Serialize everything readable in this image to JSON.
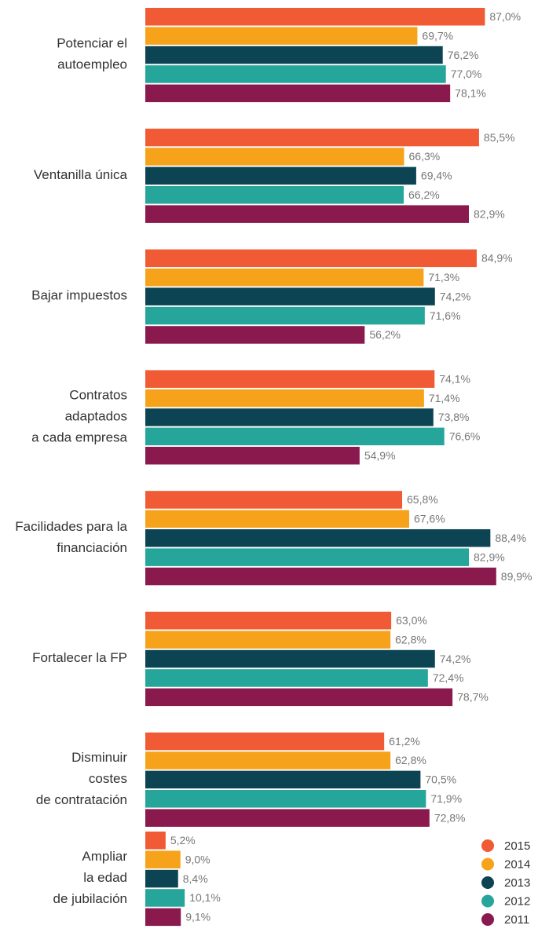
{
  "chart_data": {
    "type": "bar",
    "orientation": "horizontal",
    "categories": [
      "Potenciar el\nautoempleo",
      "Ventanilla única",
      "Bajar impuestos",
      "Contratos\nadaptados\na cada empresa",
      "Facilidades para la\nfinanciación",
      "Fortalecer la FP",
      "Disminuir\ncostes\nde contratación",
      "Ampliar\nla edad\nde jubilación"
    ],
    "xlim": [
      0,
      100
    ],
    "legend": "bottom-right",
    "series": [
      {
        "name": "2015",
        "color": "#f05a35",
        "values": [
          87.0,
          85.5,
          84.9,
          74.1,
          65.8,
          63.0,
          61.2,
          5.2
        ],
        "value_labels": [
          "87,0%",
          "85,5%",
          "84,9%",
          "74,1%",
          "65,8%",
          "63,0%",
          "61,2%",
          "5,2%"
        ]
      },
      {
        "name": "2014",
        "color": "#f7a21b",
        "values": [
          69.7,
          66.3,
          71.3,
          71.4,
          67.6,
          62.8,
          62.8,
          9.0
        ],
        "value_labels": [
          "69,7%",
          "66,3%",
          "71,3%",
          "71,4%",
          "67,6%",
          "62,8%",
          "62,8%",
          "9,0%"
        ]
      },
      {
        "name": "2013",
        "color": "#0d4454",
        "values": [
          76.2,
          69.4,
          74.2,
          73.8,
          88.4,
          74.2,
          70.5,
          8.4
        ],
        "value_labels": [
          "76,2%",
          "69,4%",
          "74,2%",
          "73,8%",
          "88,4%",
          "74,2%",
          "70,5%",
          "8,4%"
        ]
      },
      {
        "name": "2012",
        "color": "#26a69a",
        "values": [
          77.0,
          66.2,
          71.6,
          76.6,
          82.9,
          72.4,
          71.9,
          10.1
        ],
        "value_labels": [
          "77,0%",
          "66,2%",
          "71,6%",
          "76,6%",
          "82,9%",
          "72,4%",
          "71,9%",
          "10,1%"
        ]
      },
      {
        "name": "2011",
        "color": "#8a1a4e",
        "values": [
          78.1,
          82.9,
          56.2,
          54.9,
          89.9,
          78.7,
          72.8,
          9.1
        ],
        "value_labels": [
          "78,1%",
          "82,9%",
          "56,2%",
          "54,9%",
          "89,9%",
          "78,7%",
          "72,8%",
          "9,1%"
        ]
      }
    ]
  }
}
